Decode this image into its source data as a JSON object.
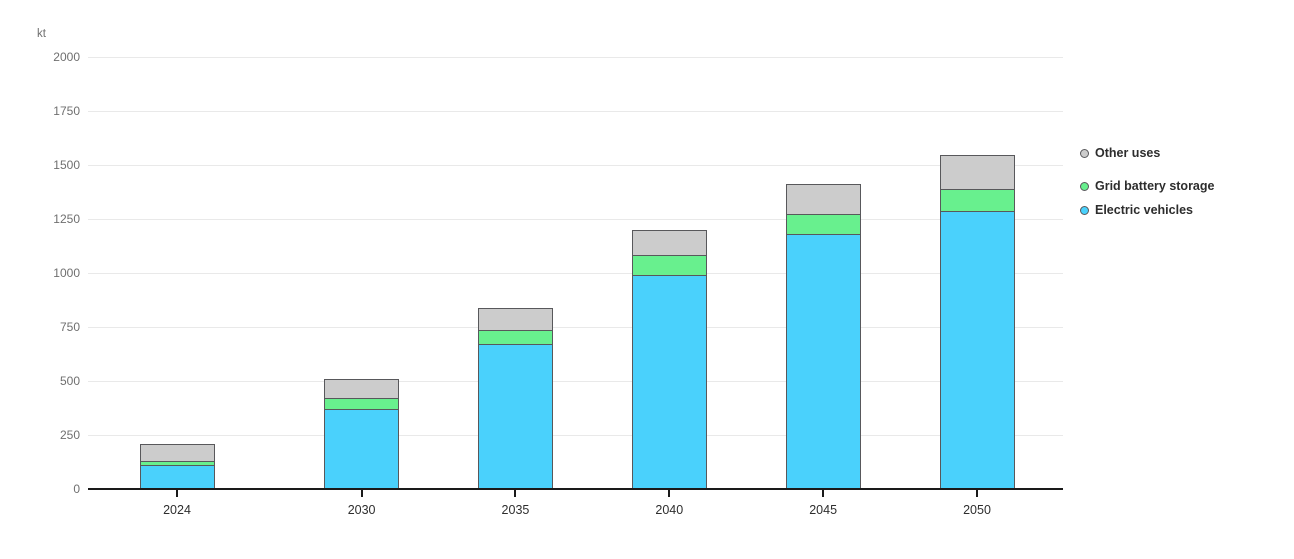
{
  "page": {
    "background": "#ffffff"
  },
  "chart_data": {
    "type": "bar",
    "stacked": true,
    "title": "",
    "unit": "kt",
    "xlabel": "",
    "ylabel": "kt",
    "categories": [
      2024,
      2030,
      2035,
      2040,
      2045,
      2050
    ],
    "series": [
      {
        "name": "Electric vehicles",
        "color": "#4AD1FC",
        "values": [
          110,
          370,
          670,
          990,
          1180,
          1285
        ]
      },
      {
        "name": "Grid battery storage",
        "color": "#68F08E",
        "values": [
          20,
          50,
          65,
          95,
          95,
          105
        ]
      },
      {
        "name": "Other uses",
        "color": "#CCCCCC",
        "values": [
          80,
          90,
          105,
          115,
          135,
          155
        ]
      }
    ],
    "totals": [
      210,
      510,
      840,
      1200,
      1410,
      1545
    ],
    "ylim": [
      0,
      2000
    ],
    "yticks": [
      0,
      250,
      500,
      750,
      1000,
      1250,
      1500,
      1750,
      2000
    ],
    "grid": true,
    "legend_position": "right",
    "legend_order": [
      "Other uses",
      "Grid battery storage",
      "Electric vehicles"
    ],
    "colors": {
      "bar_border": "#58585B",
      "gridline": "#E9E9E9",
      "axis_line": "#1A1A1A",
      "axis_text": "#6F6F6F",
      "category_text": "#2E2E2E",
      "legend_text": "#2D2D2D"
    }
  }
}
